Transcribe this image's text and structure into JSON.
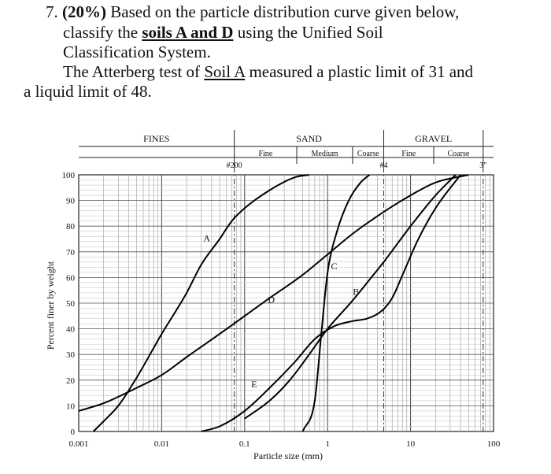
{
  "problem": {
    "number": "7.",
    "weight": "(20%)",
    "line1_text": " Based on the particle distribution curve given below,",
    "line2_pre": "classify the ",
    "line2_soils": "soils A and D",
    "line2_post": " using the Unified Soil",
    "line3": "Classification System.",
    "line4_pre": "The Atterberg test of ",
    "line4_soil": "Soil A",
    "line4_post": " measured a plastic limit of 31 and",
    "line5": "a liquid limit of 48."
  },
  "chart_data": {
    "type": "line",
    "xlabel": "Particle size (mm)",
    "ylabel": "Percent finer by weight",
    "xscale": "log",
    "xlim": [
      0.001,
      100
    ],
    "ylim": [
      0,
      100
    ],
    "x_ticks": [
      {
        "value": 0.001,
        "label": "0.001"
      },
      {
        "value": 0.01,
        "label": "0.01"
      },
      {
        "value": 0.1,
        "label": "0.1"
      },
      {
        "value": 1,
        "label": "1"
      },
      {
        "value": 10,
        "label": "10"
      },
      {
        "value": 100,
        "label": "100"
      }
    ],
    "y_ticks": [
      {
        "value": 0,
        "label": "0"
      },
      {
        "value": 10,
        "label": "10"
      },
      {
        "value": 20,
        "label": "20"
      },
      {
        "value": 30,
        "label": "30"
      },
      {
        "value": 40,
        "label": "40"
      },
      {
        "value": 50,
        "label": "50"
      },
      {
        "value": 60,
        "label": "60"
      },
      {
        "value": 70,
        "label": "70"
      },
      {
        "value": 80,
        "label": "80"
      },
      {
        "value": 90,
        "label": "90"
      },
      {
        "value": 100,
        "label": "100"
      }
    ],
    "sieves": [
      {
        "label": "#200",
        "size": 0.075
      },
      {
        "label": "#4",
        "size": 4.75
      },
      {
        "label": "3\"",
        "size": 75
      }
    ],
    "classification": {
      "fines": {
        "label": "FINES",
        "range": [
          0.001,
          0.075
        ]
      },
      "sand": {
        "label": "SAND",
        "range": [
          0.075,
          4.75
        ],
        "sub": [
          {
            "label": "Fine",
            "range": [
              0.075,
              0.425
            ]
          },
          {
            "label": "Medium",
            "range": [
              0.425,
              2.0
            ]
          },
          {
            "label": "Coarse",
            "range": [
              2.0,
              4.75
            ]
          }
        ]
      },
      "gravel": {
        "label": "GRAVEL",
        "range": [
          4.75,
          75
        ],
        "sub": [
          {
            "label": "Fine",
            "range": [
              4.75,
              19
            ]
          },
          {
            "label": "Coarse",
            "range": [
              19,
              75
            ]
          }
        ]
      }
    },
    "series": [
      {
        "name": "A",
        "label_at": {
          "x": 0.035,
          "y": 75
        },
        "points": [
          [
            0.0015,
            0
          ],
          [
            0.002,
            4
          ],
          [
            0.003,
            10
          ],
          [
            0.005,
            21
          ],
          [
            0.01,
            38
          ],
          [
            0.02,
            54
          ],
          [
            0.03,
            65
          ],
          [
            0.05,
            75
          ],
          [
            0.07,
            82
          ],
          [
            0.1,
            87
          ],
          [
            0.2,
            94
          ],
          [
            0.4,
            99
          ],
          [
            0.6,
            100
          ]
        ]
      },
      {
        "name": "B",
        "label_at": {
          "x": 2.2,
          "y": 54
        },
        "points": [
          [
            0.1,
            5
          ],
          [
            0.2,
            12
          ],
          [
            0.35,
            20
          ],
          [
            0.6,
            30
          ],
          [
            1,
            40
          ],
          [
            2,
            51
          ],
          [
            3,
            58
          ],
          [
            5,
            67
          ],
          [
            10,
            80
          ],
          [
            20,
            92
          ],
          [
            35,
            100
          ]
        ]
      },
      {
        "name": "C",
        "label_at": {
          "x": 1.2,
          "y": 64
        },
        "points": [
          [
            0.5,
            0
          ],
          [
            0.7,
            12
          ],
          [
            0.85,
            40
          ],
          [
            1,
            62
          ],
          [
            1.3,
            78
          ],
          [
            1.8,
            90
          ],
          [
            2.5,
            97
          ],
          [
            3.2,
            100
          ]
        ]
      },
      {
        "name": "D",
        "label_at": {
          "x": 0.21,
          "y": 51
        },
        "points": [
          [
            0.001,
            8
          ],
          [
            0.002,
            11
          ],
          [
            0.005,
            17
          ],
          [
            0.01,
            22
          ],
          [
            0.02,
            29
          ],
          [
            0.05,
            38
          ],
          [
            0.1,
            45
          ],
          [
            0.2,
            52
          ],
          [
            0.5,
            61
          ],
          [
            1,
            69
          ],
          [
            2,
            77
          ],
          [
            5,
            86
          ],
          [
            10,
            92
          ],
          [
            20,
            97
          ],
          [
            50,
            100
          ]
        ]
      },
      {
        "name": "E",
        "label_at": {
          "x": 0.13,
          "y": 18
        },
        "points": [
          [
            0.03,
            0
          ],
          [
            0.05,
            2
          ],
          [
            0.1,
            8
          ],
          [
            0.2,
            17
          ],
          [
            0.4,
            27
          ],
          [
            0.7,
            36
          ],
          [
            1.2,
            41
          ],
          [
            2,
            43
          ],
          [
            3,
            44
          ],
          [
            4.5,
            47
          ],
          [
            6,
            52
          ],
          [
            8,
            61
          ],
          [
            12,
            74
          ],
          [
            20,
            87
          ],
          [
            40,
            100
          ]
        ]
      }
    ]
  }
}
